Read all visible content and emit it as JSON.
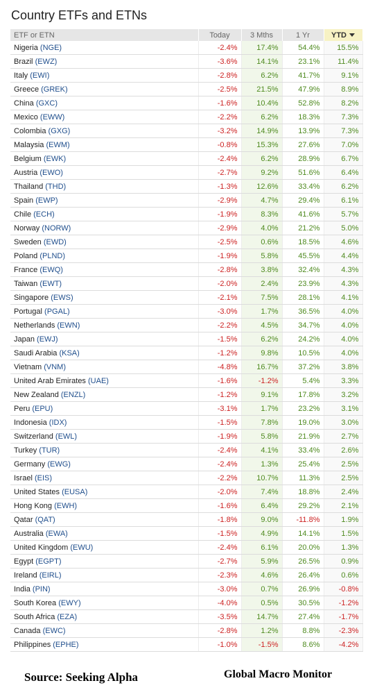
{
  "title": "Country ETFs and ETNs",
  "source": "Source:  Seeking Alpha",
  "credit": "Global Macro Monitor",
  "chart_data": {
    "type": "table",
    "title": "Country ETFs and ETNs",
    "columns": [
      "ETF or ETN",
      "Today",
      "3 Mths",
      "1 Yr",
      "YTD"
    ],
    "sorted_by": "YTD",
    "sort_direction": "descending",
    "colors": {
      "positive": "#4e8a1f",
      "negative": "#cc2222",
      "ticker": "#1f4e8c"
    },
    "rows": [
      {
        "country": "Nigeria",
        "ticker": "(NGE)",
        "today": "-2.4%",
        "m3": "17.4%",
        "yr": "54.4%",
        "ytd": "15.5%"
      },
      {
        "country": "Brazil",
        "ticker": "(EWZ)",
        "today": "-3.6%",
        "m3": "14.1%",
        "yr": "23.1%",
        "ytd": "11.4%"
      },
      {
        "country": "Italy",
        "ticker": "(EWI)",
        "today": "-2.8%",
        "m3": "6.2%",
        "yr": "41.7%",
        "ytd": "9.1%"
      },
      {
        "country": "Greece",
        "ticker": "(GREK)",
        "today": "-2.5%",
        "m3": "21.5%",
        "yr": "47.9%",
        "ytd": "8.9%"
      },
      {
        "country": "China",
        "ticker": "(GXC)",
        "today": "-1.6%",
        "m3": "10.4%",
        "yr": "52.8%",
        "ytd": "8.2%"
      },
      {
        "country": "Mexico",
        "ticker": "(EWW)",
        "today": "-2.2%",
        "m3": "6.2%",
        "yr": "18.3%",
        "ytd": "7.3%"
      },
      {
        "country": "Colombia",
        "ticker": "(GXG)",
        "today": "-3.2%",
        "m3": "14.9%",
        "yr": "13.9%",
        "ytd": "7.3%"
      },
      {
        "country": "Malaysia",
        "ticker": "(EWM)",
        "today": "-0.8%",
        "m3": "15.3%",
        "yr": "27.6%",
        "ytd": "7.0%"
      },
      {
        "country": "Belgium",
        "ticker": "(EWK)",
        "today": "-2.4%",
        "m3": "6.2%",
        "yr": "28.9%",
        "ytd": "6.7%"
      },
      {
        "country": "Austria",
        "ticker": "(EWO)",
        "today": "-2.7%",
        "m3": "9.2%",
        "yr": "51.6%",
        "ytd": "6.4%"
      },
      {
        "country": "Thailand",
        "ticker": "(THD)",
        "today": "-1.3%",
        "m3": "12.6%",
        "yr": "33.4%",
        "ytd": "6.2%"
      },
      {
        "country": "Spain",
        "ticker": "(EWP)",
        "today": "-2.9%",
        "m3": "4.7%",
        "yr": "29.4%",
        "ytd": "6.1%"
      },
      {
        "country": "Chile",
        "ticker": "(ECH)",
        "today": "-1.9%",
        "m3": "8.3%",
        "yr": "41.6%",
        "ytd": "5.7%"
      },
      {
        "country": "Norway",
        "ticker": "(NORW)",
        "today": "-2.9%",
        "m3": "4.0%",
        "yr": "21.2%",
        "ytd": "5.0%"
      },
      {
        "country": "Sweden",
        "ticker": "(EWD)",
        "today": "-2.5%",
        "m3": "0.6%",
        "yr": "18.5%",
        "ytd": "4.6%"
      },
      {
        "country": "Poland",
        "ticker": "(PLND)",
        "today": "-1.9%",
        "m3": "5.8%",
        "yr": "45.5%",
        "ytd": "4.4%"
      },
      {
        "country": "France",
        "ticker": "(EWQ)",
        "today": "-2.8%",
        "m3": "3.8%",
        "yr": "32.4%",
        "ytd": "4.3%"
      },
      {
        "country": "Taiwan",
        "ticker": "(EWT)",
        "today": "-2.0%",
        "m3": "2.4%",
        "yr": "23.9%",
        "ytd": "4.3%"
      },
      {
        "country": "Singapore",
        "ticker": "(EWS)",
        "today": "-2.1%",
        "m3": "7.5%",
        "yr": "28.1%",
        "ytd": "4.1%"
      },
      {
        "country": "Portugal",
        "ticker": "(PGAL)",
        "today": "-3.0%",
        "m3": "1.7%",
        "yr": "36.5%",
        "ytd": "4.0%"
      },
      {
        "country": "Netherlands",
        "ticker": "(EWN)",
        "today": "-2.2%",
        "m3": "4.5%",
        "yr": "34.7%",
        "ytd": "4.0%"
      },
      {
        "country": "Japan",
        "ticker": "(EWJ)",
        "today": "-1.5%",
        "m3": "6.2%",
        "yr": "24.2%",
        "ytd": "4.0%"
      },
      {
        "country": "Saudi Arabia",
        "ticker": "(KSA)",
        "today": "-1.2%",
        "m3": "9.8%",
        "yr": "10.5%",
        "ytd": "4.0%"
      },
      {
        "country": "Vietnam",
        "ticker": "(VNM)",
        "today": "-4.8%",
        "m3": "16.7%",
        "yr": "37.2%",
        "ytd": "3.8%"
      },
      {
        "country": "United Arab Emirates",
        "ticker": "(UAE)",
        "today": "-1.6%",
        "m3": "-1.2%",
        "yr": "5.4%",
        "ytd": "3.3%"
      },
      {
        "country": "New Zealand",
        "ticker": "(ENZL)",
        "today": "-1.2%",
        "m3": "9.1%",
        "yr": "17.8%",
        "ytd": "3.2%"
      },
      {
        "country": "Peru",
        "ticker": "(EPU)",
        "today": "-3.1%",
        "m3": "1.7%",
        "yr": "23.2%",
        "ytd": "3.1%"
      },
      {
        "country": "Indonesia",
        "ticker": "(IDX)",
        "today": "-1.5%",
        "m3": "7.8%",
        "yr": "19.0%",
        "ytd": "3.0%"
      },
      {
        "country": "Switzerland",
        "ticker": "(EWL)",
        "today": "-1.9%",
        "m3": "5.8%",
        "yr": "21.9%",
        "ytd": "2.7%"
      },
      {
        "country": "Turkey",
        "ticker": "(TUR)",
        "today": "-2.4%",
        "m3": "4.1%",
        "yr": "33.4%",
        "ytd": "2.6%"
      },
      {
        "country": "Germany",
        "ticker": "(EWG)",
        "today": "-2.4%",
        "m3": "1.3%",
        "yr": "25.4%",
        "ytd": "2.5%"
      },
      {
        "country": "Israel",
        "ticker": "(EIS)",
        "today": "-2.2%",
        "m3": "10.7%",
        "yr": "11.3%",
        "ytd": "2.5%"
      },
      {
        "country": "United States",
        "ticker": "(EUSA)",
        "today": "-2.0%",
        "m3": "7.4%",
        "yr": "18.8%",
        "ytd": "2.4%"
      },
      {
        "country": "Hong Kong",
        "ticker": "(EWH)",
        "today": "-1.6%",
        "m3": "6.4%",
        "yr": "29.2%",
        "ytd": "2.1%"
      },
      {
        "country": "Qatar",
        "ticker": "(QAT)",
        "today": "-1.8%",
        "m3": "9.0%",
        "yr": "-11.8%",
        "ytd": "1.9%"
      },
      {
        "country": "Australia",
        "ticker": "(EWA)",
        "today": "-1.5%",
        "m3": "4.9%",
        "yr": "14.1%",
        "ytd": "1.5%"
      },
      {
        "country": "United Kingdom",
        "ticker": "(EWU)",
        "today": "-2.4%",
        "m3": "6.1%",
        "yr": "20.0%",
        "ytd": "1.3%"
      },
      {
        "country": "Egypt",
        "ticker": "(EGPT)",
        "today": "-2.7%",
        "m3": "5.9%",
        "yr": "26.5%",
        "ytd": "0.9%"
      },
      {
        "country": "Ireland",
        "ticker": "(EIRL)",
        "today": "-2.3%",
        "m3": "4.6%",
        "yr": "26.4%",
        "ytd": "0.6%"
      },
      {
        "country": "India",
        "ticker": "(PIN)",
        "today": "-3.0%",
        "m3": "0.7%",
        "yr": "26.9%",
        "ytd": "-0.8%"
      },
      {
        "country": "South Korea",
        "ticker": "(EWY)",
        "today": "-4.0%",
        "m3": "0.5%",
        "yr": "30.5%",
        "ytd": "-1.2%"
      },
      {
        "country": "South Africa",
        "ticker": "(EZA)",
        "today": "-3.5%",
        "m3": "14.7%",
        "yr": "27.4%",
        "ytd": "-1.7%"
      },
      {
        "country": "Canada",
        "ticker": "(EWC)",
        "today": "-2.8%",
        "m3": "1.2%",
        "yr": "8.8%",
        "ytd": "-2.3%"
      },
      {
        "country": "Philippines",
        "ticker": "(EPHE)",
        "today": "-1.0%",
        "m3": "-1.5%",
        "yr": "8.6%",
        "ytd": "-4.2%"
      }
    ]
  }
}
